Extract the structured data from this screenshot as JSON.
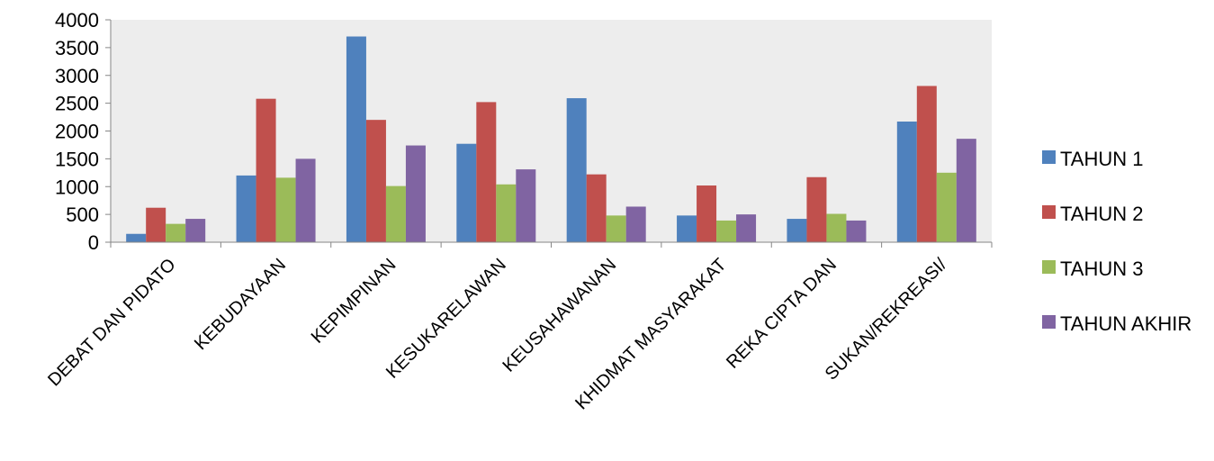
{
  "chart_data": {
    "type": "bar",
    "categories": [
      "DEBAT DAN PIDATO",
      "KEBUDAYAAN",
      "KEPIMPINAN",
      "KESUKARELAWAN",
      "KEUSAHAWANAN",
      "KHIDMAT MASYARAKAT",
      "REKA CIPTA DAN",
      "SUKAN/REKREASI/"
    ],
    "series": [
      {
        "name": "TAHUN 1",
        "color": "#4F81BD",
        "values": [
          150,
          1200,
          3700,
          1770,
          2590,
          480,
          420,
          2170
        ]
      },
      {
        "name": "TAHUN 2",
        "color": "#C0504D",
        "values": [
          620,
          2580,
          2200,
          2520,
          1220,
          1020,
          1170,
          2810
        ]
      },
      {
        "name": "TAHUN 3",
        "color": "#9BBB59",
        "values": [
          330,
          1160,
          1010,
          1040,
          480,
          390,
          510,
          1250
        ]
      },
      {
        "name": "TAHUN AKHIR",
        "color": "#8064A2",
        "values": [
          420,
          1500,
          1740,
          1310,
          640,
          500,
          390,
          1860
        ]
      }
    ],
    "yticks": [
      0,
      500,
      1000,
      1500,
      2000,
      2500,
      3000,
      3500,
      4000
    ],
    "ylim": [
      0,
      4000
    ],
    "plot_background": "#EDEDED",
    "legend_position": "right",
    "grid": false,
    "title": "",
    "xlabel": "",
    "ylabel": ""
  }
}
